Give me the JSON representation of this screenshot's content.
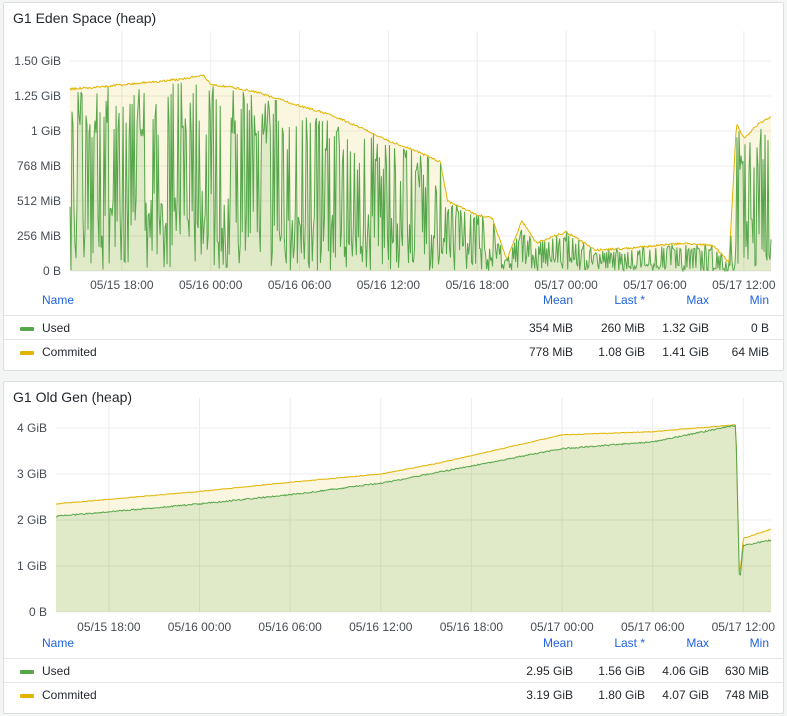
{
  "panels": [
    {
      "title": "G1 Eden Space (heap)",
      "legend": {
        "headers": {
          "name": "Name",
          "mean": "Mean",
          "last": "Last *",
          "max": "Max",
          "min": "Min"
        },
        "rows": [
          {
            "name": "Used",
            "color": "#56a64b",
            "mean": "354 MiB",
            "last": "260 MiB",
            "max": "1.32 GiB",
            "min": "0 B"
          },
          {
            "name": "Commited",
            "color": "#e0b400",
            "mean": "778 MiB",
            "last": "1.08 GiB",
            "max": "1.41 GiB",
            "min": "64 MiB"
          }
        ]
      }
    },
    {
      "title": "G1 Old Gen (heap)",
      "legend": {
        "headers": {
          "name": "Name",
          "mean": "Mean",
          "last": "Last *",
          "max": "Max",
          "min": "Min"
        },
        "rows": [
          {
            "name": "Used",
            "color": "#56a64b",
            "mean": "2.95 GiB",
            "last": "1.56 GiB",
            "max": "4.06 GiB",
            "min": "630 MiB"
          },
          {
            "name": "Commited",
            "color": "#e0b400",
            "mean": "3.19 GiB",
            "last": "1.80 GiB",
            "max": "4.07 GiB",
            "min": "748 MiB"
          }
        ]
      }
    }
  ],
  "chart_data": [
    {
      "type": "area",
      "title": "G1 Eden Space (heap)",
      "x_unit": "hours",
      "x_range": [
        "05/15 14:30",
        "05/17 13:50"
      ],
      "x_ticks": [
        "05/15 18:00",
        "05/16 00:00",
        "05/16 06:00",
        "05/16 12:00",
        "05/16 18:00",
        "05/17 00:00",
        "05/17 06:00",
        "05/17 12:00"
      ],
      "y_ticks": [
        "0 B",
        "256 MiB",
        "512 MiB",
        "768 MiB",
        "1 GiB",
        "1.25 GiB",
        "1.50 GiB"
      ],
      "ylim": [
        0,
        1.5
      ],
      "y_unit": "GiB",
      "grid": true,
      "series": [
        {
          "name": "Commited",
          "color": "#e0b400",
          "x": [
            "05/15 14:30",
            "05/15 16:00",
            "05/15 18:00",
            "05/15 20:00",
            "05/15 22:00",
            "05/15 23:30",
            "05/16 00:00",
            "05/16 01:00",
            "05/16 03:00",
            "05/16 06:00",
            "05/16 08:00",
            "05/16 10:00",
            "05/16 12:00",
            "05/16 14:00",
            "05/16 15:30",
            "05/16 16:00",
            "05/16 17:00",
            "05/16 18:00",
            "05/16 19:00",
            "05/16 20:00",
            "05/16 21:00",
            "05/16 22:00",
            "05/17 00:00",
            "05/17 02:00",
            "05/17 04:00",
            "05/17 06:00",
            "05/17 08:00",
            "05/17 10:00",
            "05/17 11:00",
            "05/17 11:30",
            "05/17 12:00",
            "05/17 13:00",
            "05/17 13:50"
          ],
          "values": [
            1.3,
            1.31,
            1.33,
            1.35,
            1.37,
            1.4,
            1.33,
            1.32,
            1.28,
            1.18,
            1.12,
            1.03,
            0.93,
            0.85,
            0.78,
            0.5,
            0.45,
            0.4,
            0.38,
            0.08,
            0.36,
            0.2,
            0.28,
            0.15,
            0.16,
            0.18,
            0.2,
            0.18,
            0.06,
            1.05,
            0.95,
            1.05,
            1.1
          ]
        },
        {
          "name": "Used",
          "color": "#56a64b",
          "x": [
            "05/15 14:30",
            "05/16 00:00",
            "05/16 06:00",
            "05/16 12:00",
            "05/16 18:00",
            "05/17 00:00",
            "05/17 06:00",
            "05/17 11:00",
            "05/17 12:00",
            "05/17 13:50"
          ],
          "values": [
            0.55,
            0.6,
            0.45,
            0.4,
            0.18,
            0.1,
            0.05,
            0.02,
            0.5,
            0.26
          ],
          "note_pattern": "sawtooth"
        }
      ]
    },
    {
      "type": "area",
      "title": "G1 Old Gen (heap)",
      "x_unit": "hours",
      "x_range": [
        "05/15 14:30",
        "05/17 13:50"
      ],
      "x_ticks": [
        "05/15 18:00",
        "05/16 00:00",
        "05/16 06:00",
        "05/16 12:00",
        "05/16 18:00",
        "05/17 00:00",
        "05/17 06:00",
        "05/17 12:00"
      ],
      "y_ticks": [
        "0 B",
        "1 GiB",
        "2 GiB",
        "3 GiB",
        "4 GiB"
      ],
      "ylim": [
        0,
        4.0
      ],
      "y_unit": "GiB",
      "grid": true,
      "series": [
        {
          "name": "Commited",
          "color": "#e0b400",
          "x": [
            "05/15 14:30",
            "05/15 18:00",
            "05/16 00:00",
            "05/16 06:00",
            "05/16 12:00",
            "05/16 16:00",
            "05/16 20:00",
            "05/17 00:00",
            "05/17 06:00",
            "05/17 11:30",
            "05/17 11:45",
            "05/17 12:00",
            "05/17 13:50"
          ],
          "values": [
            2.35,
            2.45,
            2.62,
            2.82,
            3.0,
            3.25,
            3.55,
            3.85,
            3.92,
            4.07,
            0.75,
            1.6,
            1.8
          ]
        },
        {
          "name": "Used",
          "color": "#56a64b",
          "x": [
            "05/15 14:30",
            "05/15 18:00",
            "05/16 00:00",
            "05/16 06:00",
            "05/16 12:00",
            "05/16 16:00",
            "05/16 20:00",
            "05/17 00:00",
            "05/17 06:00",
            "05/17 11:30",
            "05/17 11:45",
            "05/17 12:00",
            "05/17 13:50"
          ],
          "values": [
            2.08,
            2.18,
            2.35,
            2.55,
            2.8,
            3.05,
            3.3,
            3.55,
            3.7,
            4.06,
            0.63,
            1.45,
            1.56
          ]
        }
      ]
    }
  ]
}
